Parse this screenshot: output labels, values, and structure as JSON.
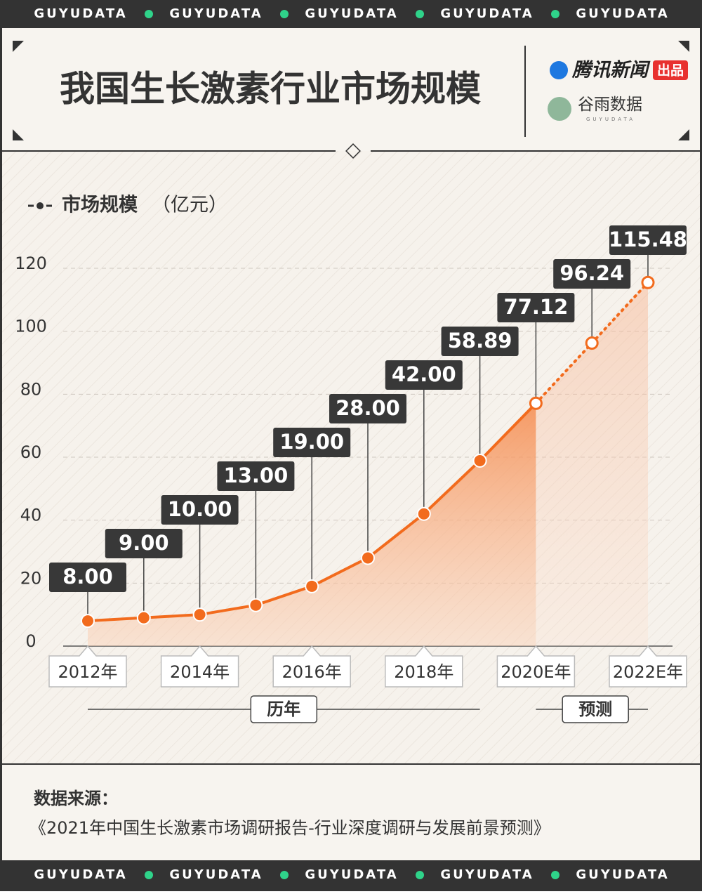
{
  "header": {
    "brand": "GUYUDATA",
    "title": "我国生长激素行业市场规模",
    "publisher": "腾讯新闻",
    "publisher_tag": "出品",
    "partner": "谷雨数据",
    "partner_sub": "GUYUDATA"
  },
  "chart_data": {
    "type": "line",
    "legend": "市场规模",
    "unit": "（亿元）",
    "color": "#f26b1d",
    "categories": [
      "2012年",
      null,
      "2014年",
      null,
      "2016年",
      null,
      "2018年",
      null,
      "2020E年",
      null,
      "2022E年"
    ],
    "values": [
      8,
      9,
      10,
      13,
      19,
      28,
      42,
      58.89,
      77.12,
      96.24,
      115.48
    ],
    "value_labels": [
      "8.00",
      "9.00",
      "10.00",
      "13.00",
      "19.00",
      "28.00",
      "42.00",
      "58.89",
      "77.12",
      "96.24",
      "115.48"
    ],
    "ylim": [
      0,
      120
    ],
    "yticks": [
      0,
      20,
      40,
      60,
      80,
      100,
      120
    ],
    "grid": true,
    "periods": [
      {
        "label": "历年",
        "start": 0,
        "end": 7
      },
      {
        "label": "预测",
        "start": 8,
        "end": 10
      }
    ]
  },
  "source": {
    "label": "数据来源：",
    "text": "《2021年中国生长激素市场调研报告-行业深度调研与发展前景预测》"
  }
}
